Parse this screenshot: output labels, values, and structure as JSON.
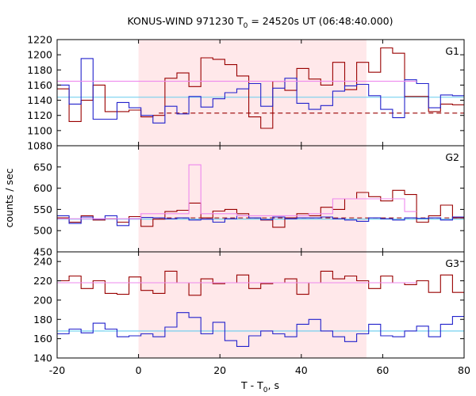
{
  "chart_data": {
    "type": "line",
    "title": "KONUS-WIND 971230 T",
    "title_sub": "0",
    "title_suffix": " = 24520s UT (06:48:40.000)",
    "xlabel": "T - T",
    "xlabel_sub": "0",
    "xlabel_suffix": ", s",
    "ylabel": "counts / sec",
    "xlim": [
      -20,
      80
    ],
    "x_ticks": [
      -20,
      0,
      20,
      40,
      60,
      80
    ],
    "shaded_interval": {
      "x": [
        0,
        56
      ],
      "color": "#ffe8ea"
    },
    "colors": {
      "red": "#990000",
      "blue": "#2222cc",
      "pink": "#ee88ee",
      "cyan": "#66ccee"
    },
    "panels": [
      {
        "label": "G1",
        "ylim": [
          1080,
          1220
        ],
        "y_ticks": [
          1080,
          1100,
          1120,
          1140,
          1160,
          1180,
          1200,
          1220
        ],
        "bin_width": 2.944,
        "start": -20,
        "series": [
          {
            "color_key": "red",
            "values": [
              1155,
              1112,
              1140,
              1160,
              1125,
              1125,
              1127,
              1118,
              1120,
              1169,
              1176,
              1158,
              1196,
              1194,
              1187,
              1172,
              1118,
              1103,
              1165,
              1153,
              1182,
              1168,
              1160,
              1190,
              1154,
              1190,
              1177,
              1209,
              1202,
              1145,
              1145,
              1125,
              1135,
              1134,
              1095,
              1147,
              1155,
              1170,
              1150
            ]
          },
          {
            "color_key": "blue",
            "values": [
              1160,
              1135,
              1195,
              1115,
              1115,
              1137,
              1130,
              1120,
              1110,
              1132,
              1122,
              1145,
              1131,
              1142,
              1150,
              1155,
              1162,
              1132,
              1156,
              1169,
              1136,
              1128,
              1133,
              1152,
              1159,
              1161,
              1146,
              1128,
              1117,
              1167,
              1162,
              1130,
              1147,
              1146,
              1129,
              1120,
              1135,
              1140,
              1145
            ]
          },
          {
            "color_key": "pink",
            "values": [
              1165,
              1165,
              1165,
              1165,
              1165,
              1165,
              1165,
              1165,
              1165,
              1165,
              1165,
              1165,
              1165,
              1165,
              1165,
              1165,
              1165,
              1165,
              1165,
              1165,
              1165,
              1165,
              1165,
              1165,
              1165,
              1165,
              1165,
              1165,
              1165,
              1165
            ]
          }
        ],
        "flat_lines": [
          {
            "color_key": "cyan",
            "y": 1144,
            "dashed": false
          },
          {
            "color_key": "red",
            "y": 1123,
            "dashed": true,
            "x_start": 5
          }
        ]
      },
      {
        "label": "G2",
        "ylim": [
          450,
          700
        ],
        "y_ticks": [
          450,
          500,
          550,
          600,
          650
        ],
        "bin_width": 2.944,
        "start": -20,
        "series": [
          {
            "color_key": "red",
            "values": [
              530,
              520,
              535,
              525,
              528,
              520,
              533,
              510,
              527,
              545,
              548,
              565,
              530,
              546,
              550,
              540,
              530,
              525,
              508,
              530,
              540,
              535,
              555,
              550,
              575,
              590,
              580,
              570,
              595,
              585,
              520,
              535,
              560,
              530,
              505,
              525,
              500,
              515,
              510
            ]
          },
          {
            "color_key": "blue",
            "values": [
              535,
              517,
              532,
              527,
              535,
              512,
              528,
              531,
              530,
              528,
              530,
              525,
              527,
              520,
              528,
              535,
              530,
              526,
              532,
              528,
              530,
              530,
              532,
              528,
              525,
              522,
              530,
              528,
              525,
              530,
              529,
              530,
              525,
              532,
              522,
              530,
              522,
              528,
              526
            ]
          },
          {
            "color_key": "pink",
            "values": [
              528,
              528,
              528,
              528,
              528,
              528,
              528,
              540,
              540,
              540,
              540,
              655,
              540,
              540,
              540,
              535,
              535,
              535,
              535,
              535,
              535,
              540,
              540,
              575,
              575,
              575,
              575,
              575,
              575,
              545
            ]
          }
        ],
        "flat_lines": [
          {
            "color_key": "cyan",
            "y": 527,
            "dashed": false
          },
          {
            "color_key": "red",
            "y": 530,
            "dashed": true,
            "x_start": 5
          }
        ]
      },
      {
        "label": "G3",
        "ylim": [
          140,
          250
        ],
        "y_ticks": [
          140,
          160,
          180,
          200,
          220,
          240
        ],
        "bin_width": 2.944,
        "start": -20,
        "series": [
          {
            "color_key": "red",
            "values": [
              220,
              225,
              212,
              220,
              207,
              206,
              224,
              210,
              207,
              230,
              218,
              205,
              222,
              217,
              218,
              226,
              212,
              217,
              218,
              222,
              206,
              218,
              230,
              222,
              225,
              220,
              212,
              225,
              218,
              216,
              220,
              208,
              226,
              208,
              206,
              226,
              205,
              210,
              213
            ]
          },
          {
            "color_key": "blue",
            "values": [
              165,
              170,
              166,
              176,
              170,
              162,
              163,
              165,
              162,
              172,
              187,
              182,
              165,
              177,
              158,
              152,
              163,
              168,
              165,
              162,
              175,
              180,
              168,
              162,
              157,
              165,
              175,
              163,
              162,
              168,
              173,
              162,
              175,
              183,
              170,
              172,
              168,
              166,
              162
            ]
          },
          {
            "color_key": "pink",
            "values": [
              218,
              218,
              218,
              218,
              218,
              218,
              218,
              218,
              218,
              218,
              218,
              218,
              218,
              218,
              218,
              218,
              218,
              218,
              218,
              218,
              218,
              218,
              218,
              218,
              218,
              218,
              218,
              218,
              218,
              218
            ]
          }
        ],
        "flat_lines": [
          {
            "color_key": "cyan",
            "y": 168,
            "dashed": false
          }
        ]
      }
    ]
  }
}
